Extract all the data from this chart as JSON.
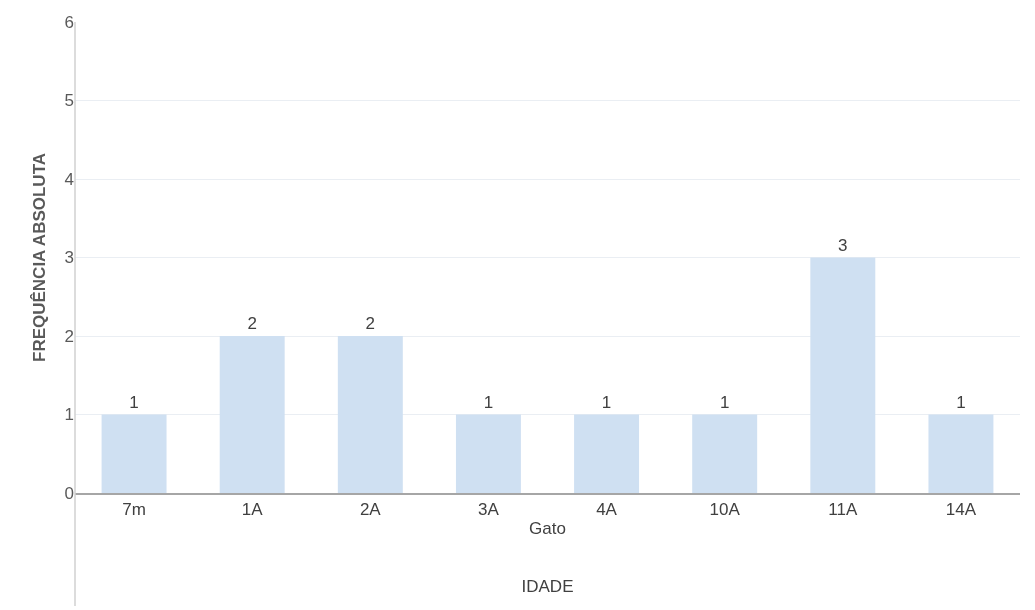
{
  "chart_data": {
    "type": "bar",
    "xlabel": "IDADE",
    "ylabel": "FREQUÊNCIA ABSOLUTA",
    "categories": [
      "7m",
      "1A",
      "2A",
      "3A",
      "4A",
      "10A",
      "11A",
      "14A"
    ],
    "values": [
      1,
      2,
      2,
      1,
      1,
      1,
      3,
      1
    ],
    "color": "#cfe0f2",
    "ylim": [
      0,
      6
    ],
    "yticks": [
      0,
      1,
      2,
      3,
      4,
      5,
      6
    ],
    "grid": "y",
    "data_labels": true,
    "legend": false,
    "annotations": [
      "Gato"
    ]
  }
}
